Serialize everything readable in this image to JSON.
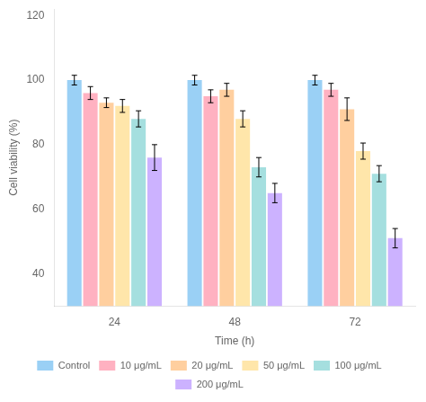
{
  "chart_data": {
    "type": "bar",
    "xlabel": "Time (h)",
    "ylabel": "Cell viability (%)",
    "categories": [
      "24",
      "48",
      "72"
    ],
    "series": [
      {
        "name": "Control",
        "values": [
          100,
          100,
          100
        ],
        "errors": [
          1.5,
          1.5,
          1.5
        ]
      },
      {
        "name": "10 μg/mL",
        "values": [
          96,
          95,
          97
        ],
        "errors": [
          2.0,
          2.0,
          2.0
        ]
      },
      {
        "name": "20 μg/mL",
        "values": [
          93,
          97,
          91
        ],
        "errors": [
          1.5,
          2.0,
          3.5
        ]
      },
      {
        "name": "50 μg/mL",
        "values": [
          92,
          88,
          78
        ],
        "errors": [
          2.0,
          2.5,
          2.5
        ]
      },
      {
        "name": "100 μg/mL",
        "values": [
          88,
          73,
          71
        ],
        "errors": [
          2.5,
          3.0,
          2.5
        ]
      },
      {
        "name": "200 μg/mL",
        "values": [
          76,
          65,
          51
        ],
        "errors": [
          4.0,
          3.0,
          3.0
        ]
      }
    ],
    "ylim": [
      30,
      122
    ],
    "yticks": [
      40,
      60,
      80,
      100,
      120
    ],
    "grid": false,
    "legend": "bottom"
  }
}
